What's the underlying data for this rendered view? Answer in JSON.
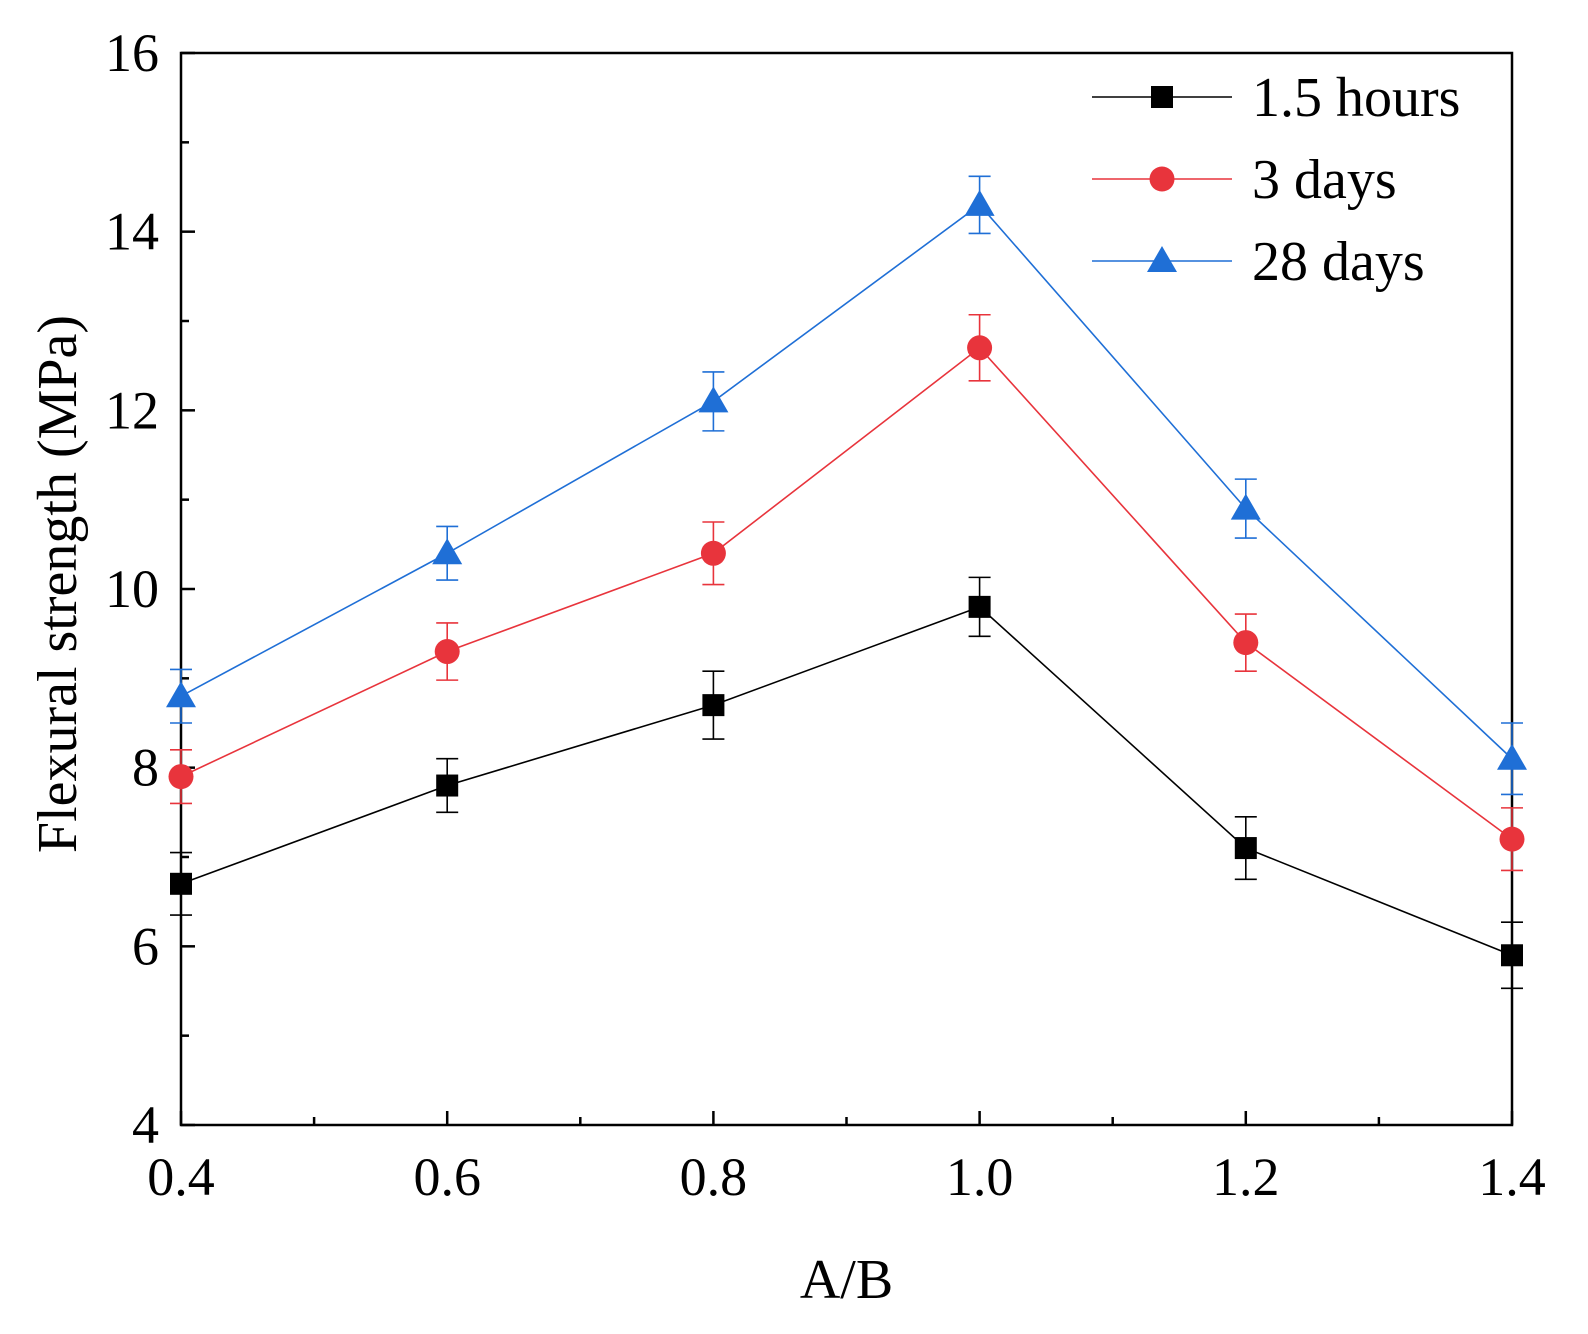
{
  "chart_data": {
    "type": "line",
    "title": "",
    "xlabel": "A/B",
    "ylabel": "Flexural strength (MPa)",
    "x": [
      0.4,
      0.6,
      0.8,
      1.0,
      1.2,
      1.4
    ],
    "x_tick_labels": [
      "0.4",
      "0.6",
      "0.8",
      "1.0",
      "1.2",
      "1.4"
    ],
    "y_tick_labels": [
      "4",
      "6",
      "8",
      "10",
      "12",
      "14",
      "16"
    ],
    "xlim": [
      0.4,
      1.4
    ],
    "ylim": [
      4,
      16
    ],
    "grid": false,
    "legend_position": "top-right",
    "series": [
      {
        "name": "1.5 hours",
        "color": "#000000",
        "marker": "square",
        "values": [
          6.7,
          7.8,
          8.7,
          9.8,
          7.1,
          5.9
        ],
        "errors": [
          0.35,
          0.3,
          0.38,
          0.33,
          0.35,
          0.37
        ]
      },
      {
        "name": "3 days",
        "color": "#e8343c",
        "marker": "circle",
        "values": [
          7.9,
          9.3,
          10.4,
          12.7,
          9.4,
          7.2
        ],
        "errors": [
          0.3,
          0.32,
          0.35,
          0.37,
          0.32,
          0.35
        ]
      },
      {
        "name": "28 days",
        "color": "#1f6fd6",
        "marker": "triangle",
        "values": [
          8.8,
          10.4,
          12.1,
          14.3,
          10.9,
          8.1
        ],
        "errors": [
          0.3,
          0.3,
          0.33,
          0.32,
          0.33,
          0.4
        ]
      }
    ]
  }
}
